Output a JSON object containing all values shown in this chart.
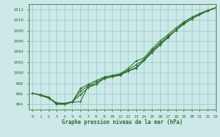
{
  "title": "Graphe pression niveau de la mer (hPa)",
  "bg_color": "#cce8e8",
  "grid_color": "#99cccc",
  "line_color": "#2d6e2d",
  "xlim": [
    -0.5,
    23
  ],
  "ylim": [
    993.0,
    1013.0
  ],
  "xticks": [
    0,
    1,
    2,
    3,
    4,
    5,
    6,
    7,
    8,
    9,
    10,
    11,
    12,
    13,
    14,
    15,
    16,
    17,
    18,
    19,
    20,
    21,
    22,
    23
  ],
  "yticks": [
    994,
    996,
    998,
    1000,
    1002,
    1004,
    1006,
    1008,
    1010,
    1012
  ],
  "series": [
    [
      996.1,
      995.8,
      995.4,
      994.0,
      994.0,
      994.4,
      994.5,
      997.5,
      997.8,
      999.0,
      999.2,
      999.5,
      1000.3,
      1000.8,
      1002.3,
      1003.8,
      1005.2,
      1006.6,
      1008.1,
      1009.5,
      1010.5,
      1011.2,
      1011.8,
      1012.3
    ],
    [
      996.1,
      995.8,
      995.3,
      994.3,
      994.2,
      994.5,
      995.8,
      997.2,
      997.8,
      998.9,
      999.2,
      999.6,
      1000.3,
      1001.0,
      1002.4,
      1004.0,
      1005.5,
      1006.8,
      1008.0,
      1009.2,
      1010.2,
      1011.0,
      1011.8,
      1012.3
    ],
    [
      996.1,
      995.7,
      995.2,
      994.2,
      994.1,
      994.4,
      996.5,
      997.5,
      998.2,
      999.0,
      999.3,
      999.7,
      1000.5,
      1001.5,
      1002.5,
      1004.2,
      1005.6,
      1006.9,
      1008.1,
      1009.3,
      1010.2,
      1011.0,
      1011.7,
      1012.3
    ],
    [
      996.1,
      995.7,
      995.2,
      994.2,
      994.1,
      994.5,
      997.0,
      997.8,
      998.5,
      999.2,
      999.5,
      999.8,
      1000.8,
      1002.2,
      1002.8,
      1004.5,
      1006.0,
      1007.2,
      1008.5,
      1009.6,
      1010.5,
      1011.2,
      1011.8,
      1012.3
    ]
  ]
}
